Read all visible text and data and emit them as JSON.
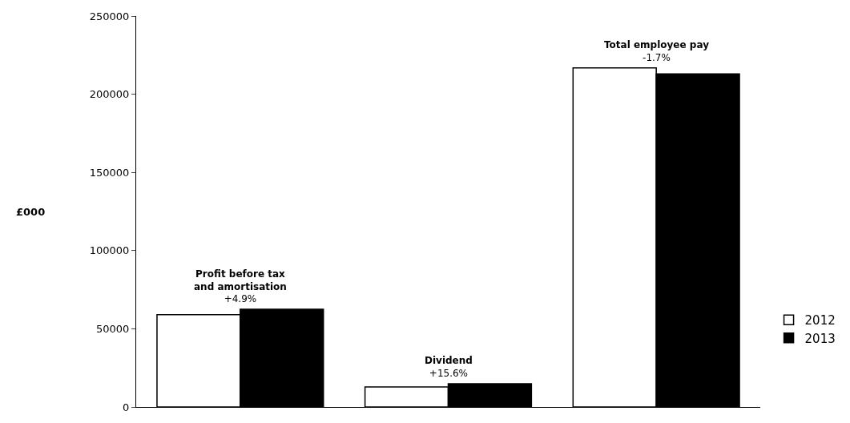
{
  "chart_data": {
    "type": "bar",
    "ylabel": "£000",
    "categories": [
      null,
      null,
      null
    ],
    "series": [
      {
        "name": "2012",
        "color": "#ffffff",
        "values": [
          59000,
          12800,
          216800
        ]
      },
      {
        "name": "2013",
        "color": "#000000",
        "values": [
          62500,
          14800,
          213000
        ]
      }
    ],
    "annotations": [
      "Profit before tax\nand amortisation\n+4.9%",
      "Dividend\n+15.6%",
      "Total employee pay\n-1.7%"
    ],
    "ylim": [
      0,
      250000
    ],
    "yticks": [
      0,
      50000,
      100000,
      150000,
      200000,
      250000
    ],
    "legend": "right"
  }
}
